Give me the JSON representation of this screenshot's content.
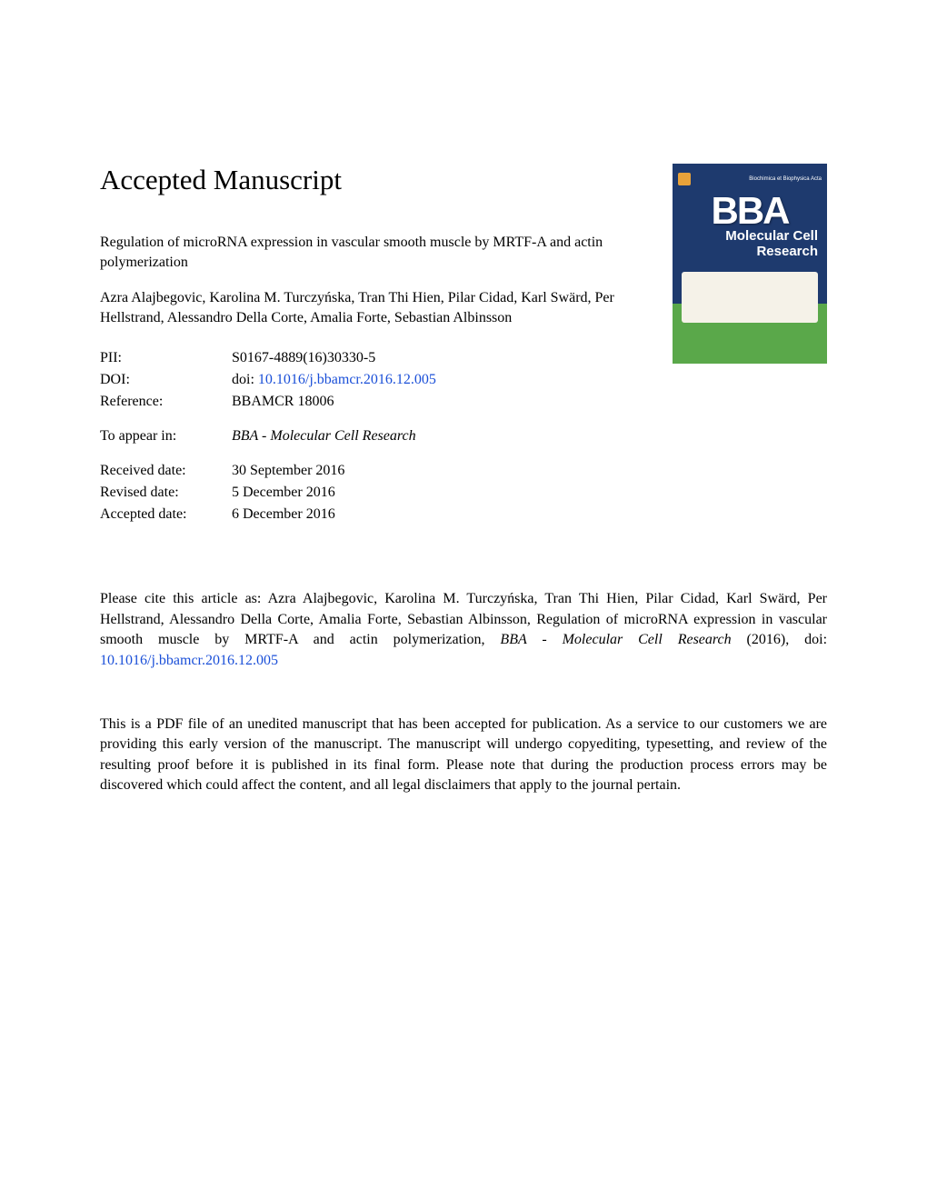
{
  "header": {
    "title": "Accepted Manuscript"
  },
  "cover": {
    "top_text": "Biochimica et Biophysica Acta",
    "bba": "BBA",
    "subtitle_line1": "Molecular Cell",
    "subtitle_line2": "Research",
    "bg_top_color": "#1e3a6e",
    "bg_bottom_color": "#5aa84a",
    "text_color": "#ffffff"
  },
  "article": {
    "title": "Regulation of microRNA expression in vascular smooth muscle by MRTF-A and actin polymerization",
    "authors": "Azra Alajbegovic, Karolina M. Turczyńska, Tran Thi Hien, Pilar Cidad, Karl Swärd, Per Hellstrand, Alessandro Della Corte, Amalia Forte, Sebastian Albinsson"
  },
  "meta": {
    "pii_label": "PII:",
    "pii_value": "S0167-4889(16)30330-5",
    "doi_label": "DOI:",
    "doi_prefix": "doi: ",
    "doi_link": "10.1016/j.bbamcr.2016.12.005",
    "reference_label": "Reference:",
    "reference_value": "BBAMCR 18006",
    "toappear_label": "To appear in:",
    "toappear_value": "BBA - Molecular Cell Research",
    "received_label": "Received date:",
    "received_value": "30 September 2016",
    "revised_label": "Revised date:",
    "revised_value": "5 December 2016",
    "accepted_label": "Accepted date:",
    "accepted_value": "6 December 2016"
  },
  "citation": {
    "prefix": "Please cite this article as: Azra Alajbegovic, Karolina M. Turczyńska, Tran Thi Hien, Pilar Cidad, Karl Swärd, Per Hellstrand, Alessandro Della Corte, Amalia Forte, Sebastian Albinsson, Regulation of microRNA expression in vascular smooth muscle by MRTF-A and actin polymerization, ",
    "journal": "BBA - Molecular Cell Research",
    "year": " (2016),   doi: ",
    "doi_link": "10.1016/j.bbamcr.2016.12.005"
  },
  "disclaimer": {
    "text": "This is a PDF file of an unedited manuscript that has been accepted for publication. As a service to our customers we are providing this early version of the manuscript. The manuscript will undergo copyediting, typesetting, and review of the resulting proof before it is published in its final form. Please note that during the production process errors may be discovered which could affect the content, and all legal disclaimers that apply to the journal pertain."
  },
  "link_color": "#1a4fd8",
  "text_color": "#000000",
  "background_color": "#ffffff"
}
